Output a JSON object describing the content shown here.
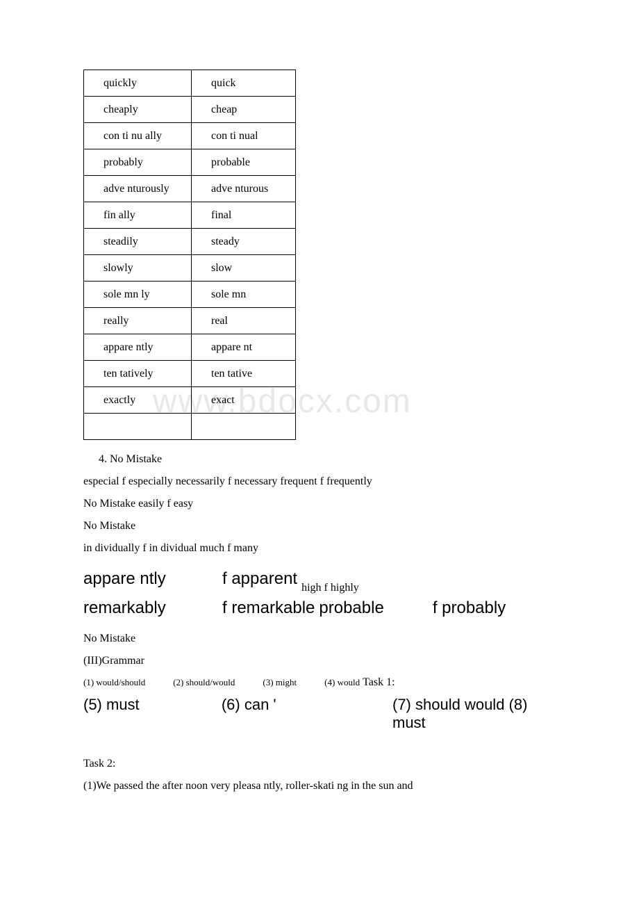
{
  "watermark": "www.bdocx.com",
  "table": {
    "rows": [
      [
        "quickly",
        "quick"
      ],
      [
        "cheaply",
        "cheap"
      ],
      [
        "con ti nu ally",
        "con ti nual"
      ],
      [
        "probably",
        "probable"
      ],
      [
        "adve nturously",
        "adve nturous"
      ],
      [
        "fin ally",
        "final"
      ],
      [
        "steadily",
        "steady"
      ],
      [
        "slowly",
        "slow"
      ],
      [
        "sole mn ly",
        "sole mn"
      ],
      [
        "really",
        "real"
      ],
      [
        "appare ntly",
        "appare nt"
      ],
      [
        "ten tatively",
        "ten tative"
      ],
      [
        "exactly",
        "exact"
      ],
      [
        "",
        ""
      ]
    ]
  },
  "paragraphs": {
    "p1": "4. No Mistake",
    "p2": "especial f especially necessarily f necessary frequent f frequently",
    "p3": "No Mistake easily f easy",
    "p4": "No Mistake",
    "p5": "in dividually f in dividual much f many"
  },
  "row1": {
    "a": "appare ntly",
    "b": "f apparent",
    "c": "high f highly"
  },
  "row2": {
    "a": "remarkably",
    "b": "f remarkable",
    "c": "probable",
    "d": "f probably"
  },
  "paragraphs2": {
    "p6": "No Mistake",
    "p7": "(III)Grammar"
  },
  "task1row1": {
    "a": "(1) would/should",
    "b": "(2) should/would",
    "c": "(3) might",
    "d": "(4) would",
    "e": "Task 1:"
  },
  "task1row2": {
    "a": "(5) must",
    "b": "(6) can '",
    "c": "(7) should would (8) must"
  },
  "paragraphs3": {
    "p8": "Task 2:",
    "p9": "(1)We passed the after noon very pleasa ntly, roller-skati ng in the sun and"
  }
}
